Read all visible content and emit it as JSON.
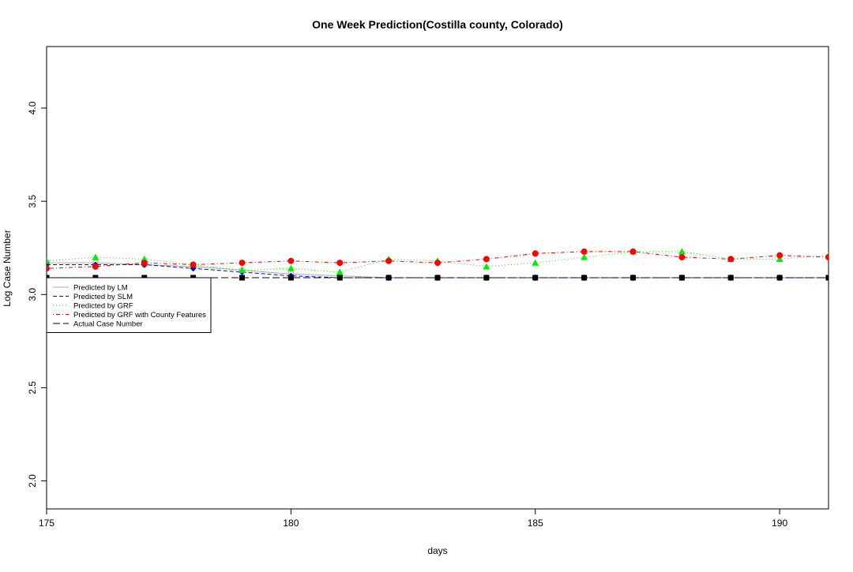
{
  "chart_data": {
    "type": "line",
    "title": "One Week Prediction(Costilla county, Colorado)",
    "xlabel": "days",
    "ylabel": "Log Case Number",
    "xlim": [
      175,
      191
    ],
    "ylim": [
      1.85,
      4.33
    ],
    "xticks": [
      175,
      180,
      185,
      190
    ],
    "yticks": [
      2.0,
      2.5,
      3.0,
      3.5,
      4.0
    ],
    "xtick_labels": [
      "175",
      "180",
      "185",
      "190"
    ],
    "ytick_labels": [
      "2.0",
      "2.5",
      "3.0",
      "3.5",
      "4.0"
    ],
    "grid": false,
    "legend_position": "left, just below 3.0",
    "x": [
      175,
      176,
      177,
      178,
      179,
      180,
      181,
      182,
      183,
      184,
      185,
      186,
      187,
      188,
      189,
      190,
      191
    ],
    "series": [
      {
        "name": "Predicted by LM",
        "color": "#aaaaaa",
        "line": "solid",
        "marker": "circle-open",
        "values": [
          3.17,
          3.17,
          3.16,
          3.15,
          3.13,
          3.11,
          3.1,
          3.09,
          3.09,
          3.09,
          3.09,
          3.09,
          3.09,
          3.09,
          3.09,
          3.09,
          3.09
        ]
      },
      {
        "name": "Predicted by SLM",
        "color": "#0000ff",
        "line": "dashed",
        "marker": "diamond",
        "values": [
          3.16,
          3.16,
          3.16,
          3.14,
          3.12,
          3.1,
          3.09,
          3.09,
          3.09,
          3.09,
          3.09,
          3.09,
          3.09,
          3.09,
          3.09,
          3.09,
          3.09
        ]
      },
      {
        "name": "Predicted by GRF",
        "color": "#00ee00",
        "line": "dotted",
        "marker": "triangle",
        "values": [
          3.18,
          3.2,
          3.19,
          3.16,
          3.13,
          3.14,
          3.12,
          3.19,
          3.18,
          3.15,
          3.17,
          3.2,
          3.23,
          3.23,
          3.19,
          3.19,
          3.21
        ]
      },
      {
        "name": "Predicted by GRF with County Features",
        "color": "#ff0000",
        "line": "dotdash",
        "marker": "circle",
        "values": [
          3.14,
          3.15,
          3.17,
          3.16,
          3.17,
          3.18,
          3.17,
          3.18,
          3.17,
          3.19,
          3.22,
          3.23,
          3.23,
          3.2,
          3.19,
          3.21,
          3.2
        ]
      },
      {
        "name": "Actual Case Number",
        "color": "#000000",
        "line": "longdash",
        "marker": "square",
        "values": [
          3.09,
          3.09,
          3.09,
          3.09,
          3.09,
          3.09,
          3.09,
          3.09,
          3.09,
          3.09,
          3.09,
          3.09,
          3.09,
          3.09,
          3.09,
          3.09,
          3.09
        ]
      }
    ]
  }
}
